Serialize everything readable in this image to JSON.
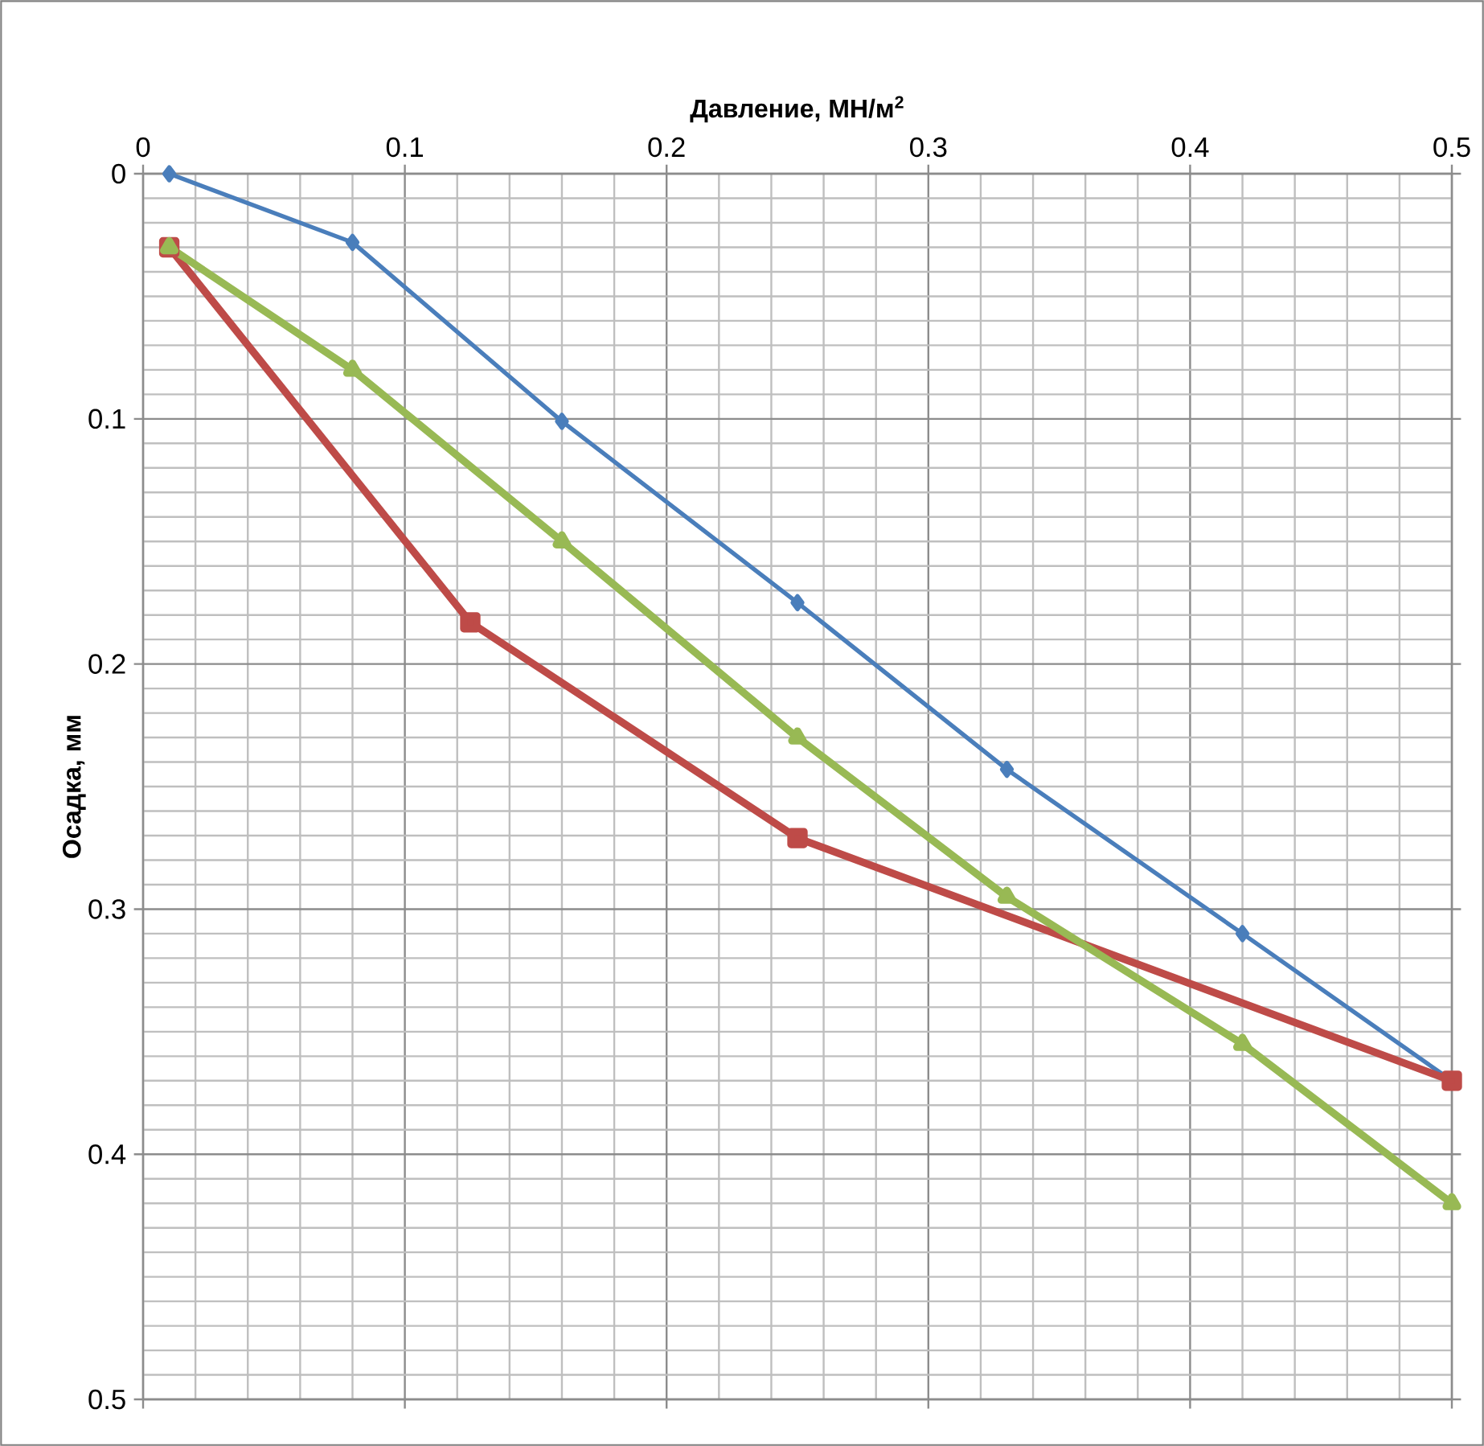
{
  "chart_data": {
    "type": "line",
    "xlabel": "Давление, МН/м$^{2}$",
    "ylabel": "Осадка, мм",
    "xlim": [
      0,
      0.5
    ],
    "ylim": [
      0.5,
      0
    ],
    "xticks": [
      0,
      0.1,
      0.2,
      0.3,
      0.4,
      0.5
    ],
    "yticks": [
      0,
      0.1,
      0.2,
      0.3,
      0.4,
      0.5
    ],
    "grid": true,
    "line_style": "solid",
    "series": [
      {
        "color": "#4a7ebb",
        "marker": "diamond",
        "x": [
          0.01,
          0.08,
          0.16,
          0.25,
          0.33,
          0.42,
          0.5
        ],
        "values": [
          0,
          0.028,
          0.101,
          0.175,
          0.243,
          0.31,
          0.37
        ]
      },
      {
        "color": "#be4b48",
        "marker": "square",
        "x": [
          0.01,
          0.125,
          0.25,
          0.5
        ],
        "values": [
          0.03,
          0.183,
          0.271,
          0.37
        ]
      },
      {
        "color": "#98b954",
        "marker": "triangle",
        "x": [
          0.01,
          0.08,
          0.16,
          0.25,
          0.33,
          0.42,
          0.5
        ],
        "values": [
          0.03,
          0.08,
          0.15,
          0.23,
          0.295,
          0.355,
          0.42
        ]
      }
    ]
  }
}
